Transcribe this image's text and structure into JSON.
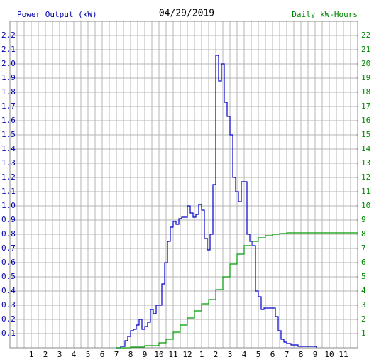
{
  "chart_data": {
    "type": "line",
    "title": "04/29/2019",
    "y_label": "Power Output (kW)",
    "y2_label": "Daily kW-Hours",
    "xlim": [
      -0.5,
      24
    ],
    "xticks": [
      1,
      2,
      3,
      4,
      5,
      6,
      7,
      8,
      9,
      10,
      11,
      12,
      {
        "value": 13,
        "label": "1"
      },
      {
        "value": 14,
        "label": "2"
      },
      {
        "value": 15,
        "label": "3"
      },
      {
        "value": 16,
        "label": "4"
      },
      {
        "value": 17,
        "label": "5"
      },
      {
        "value": 18,
        "label": "6"
      },
      {
        "value": 19,
        "label": "7"
      },
      {
        "value": 20,
        "label": "8"
      },
      {
        "value": 21,
        "label": "9"
      },
      {
        "value": 22,
        "label": "10"
      },
      {
        "value": 23,
        "label": "11"
      }
    ],
    "ylim": [
      0,
      2.3
    ],
    "yticks": [
      0.1,
      0.2,
      0.3,
      0.4,
      0.5,
      0.6,
      0.7,
      0.8,
      0.9,
      {
        "value": 1,
        "label": "1.0"
      },
      1.1,
      1.2,
      1.3,
      1.4,
      1.5,
      1.6,
      1.7,
      1.8,
      1.9,
      {
        "value": 2,
        "label": "2.0"
      },
      2.1,
      2.2
    ],
    "y2lim": [
      0,
      23
    ],
    "y2ticks": [
      1,
      2,
      3,
      4,
      5,
      6,
      7,
      8,
      9,
      10,
      11,
      12,
      13,
      14,
      15,
      16,
      17,
      18,
      19,
      20,
      21,
      22
    ],
    "grid": true,
    "series": [
      {
        "name": "Power Output (kW)",
        "color": "#0000cc",
        "x": [
          7.0,
          7.3,
          7.6,
          7.8,
          8.0,
          8.2,
          8.4,
          8.6,
          8.8,
          9.0,
          9.2,
          9.4,
          9.6,
          9.8,
          10.0,
          10.2,
          10.4,
          10.6,
          10.8,
          11.0,
          11.2,
          11.4,
          11.6,
          11.8,
          12.0,
          12.2,
          12.4,
          12.6,
          12.8,
          13.0,
          13.2,
          13.4,
          13.6,
          13.8,
          14.0,
          14.2,
          14.4,
          14.6,
          14.8,
          15.0,
          15.2,
          15.4,
          15.6,
          15.8,
          16.0,
          16.2,
          16.4,
          16.6,
          16.8,
          17.0,
          17.2,
          17.4,
          17.6,
          17.8,
          18.0,
          18.2,
          18.4,
          18.6,
          18.8,
          19.0,
          19.3,
          19.8,
          20.3,
          20.8,
          21.1
        ],
        "values": [
          0,
          0.01,
          0.05,
          0.08,
          0.12,
          0.13,
          0.16,
          0.2,
          0.13,
          0.15,
          0.18,
          0.27,
          0.24,
          0.3,
          0.3,
          0.45,
          0.6,
          0.75,
          0.85,
          0.89,
          0.87,
          0.91,
          0.92,
          0.92,
          1.0,
          0.95,
          0.92,
          0.94,
          1.01,
          0.97,
          0.77,
          0.69,
          0.8,
          1.15,
          2.06,
          1.88,
          2.0,
          1.73,
          1.63,
          1.5,
          1.2,
          1.1,
          1.03,
          1.17,
          1.17,
          0.8,
          0.75,
          0.72,
          0.4,
          0.36,
          0.27,
          0.28,
          0.28,
          0.28,
          0.28,
          0.22,
          0.12,
          0.06,
          0.04,
          0.03,
          0.02,
          0.01,
          0.01,
          0.01,
          0
        ]
      },
      {
        "name": "Daily kW-Hours",
        "color": "#009900",
        "axis": "y2",
        "x": [
          7.0,
          8.0,
          9.0,
          10.0,
          10.5,
          11.0,
          11.5,
          12.0,
          12.5,
          13.0,
          13.5,
          14.0,
          14.5,
          15.0,
          15.5,
          16.0,
          16.5,
          17.0,
          17.5,
          18.0,
          18.5,
          19.0,
          24.0
        ],
        "values": [
          0,
          0.05,
          0.15,
          0.35,
          0.6,
          1.1,
          1.6,
          2.1,
          2.6,
          3.1,
          3.4,
          4.1,
          5.0,
          5.9,
          6.6,
          7.2,
          7.5,
          7.75,
          7.9,
          8.0,
          8.05,
          8.1,
          8.1
        ]
      }
    ]
  }
}
